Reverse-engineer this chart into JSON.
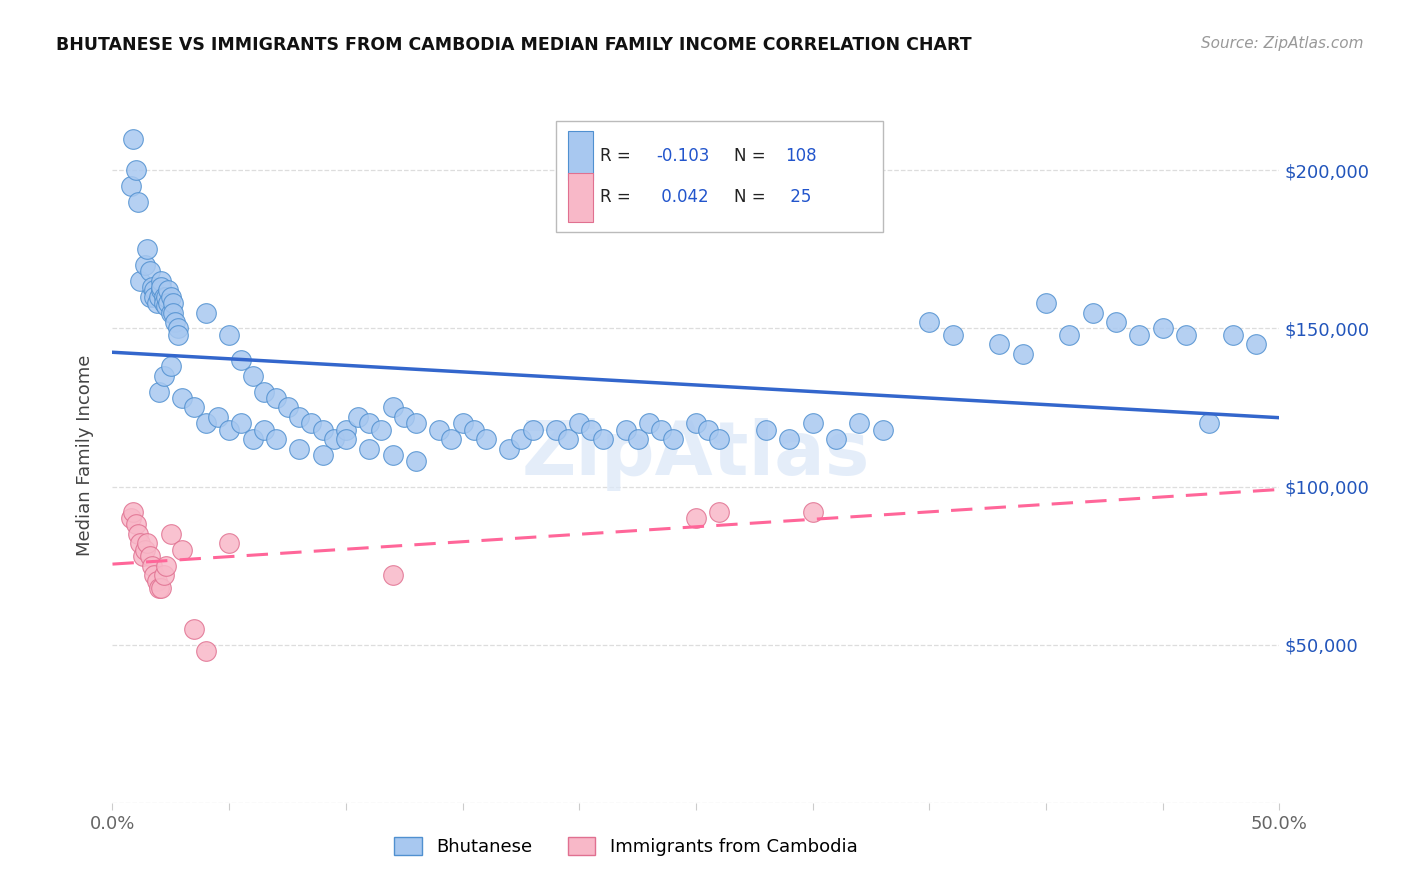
{
  "title": "BHUTANESE VS IMMIGRANTS FROM CAMBODIA MEDIAN FAMILY INCOME CORRELATION CHART",
  "source": "Source: ZipAtlas.com",
  "ylabel": "Median Family Income",
  "xlim": [
    0.0,
    0.5
  ],
  "ylim": [
    0,
    220000
  ],
  "yticks": [
    0,
    50000,
    100000,
    150000,
    200000
  ],
  "ytick_labels_right": [
    "",
    "$50,000",
    "$100,000",
    "$150,000",
    "$200,000"
  ],
  "xticks": [
    0.0,
    0.05,
    0.1,
    0.15,
    0.2,
    0.25,
    0.3,
    0.35,
    0.4,
    0.45,
    0.5
  ],
  "blue_fill": "#A8C8F0",
  "blue_edge": "#5090D0",
  "pink_fill": "#F8B8C8",
  "pink_edge": "#E07090",
  "blue_line": "#3366CC",
  "pink_line": "#FF6699",
  "legend_label_blue": "Bhutanese",
  "legend_label_pink": "Immigrants from Cambodia",
  "watermark": "ZipAtlas",
  "blue_x": [
    0.012,
    0.014,
    0.015,
    0.016,
    0.016,
    0.017,
    0.018,
    0.018,
    0.019,
    0.02,
    0.021,
    0.021,
    0.021,
    0.022,
    0.022,
    0.023,
    0.023,
    0.024,
    0.024,
    0.025,
    0.025,
    0.026,
    0.026,
    0.027,
    0.028,
    0.028,
    0.008,
    0.009,
    0.01,
    0.011,
    0.04,
    0.05,
    0.055,
    0.06,
    0.065,
    0.07,
    0.075,
    0.08,
    0.085,
    0.09,
    0.095,
    0.1,
    0.105,
    0.11,
    0.115,
    0.12,
    0.125,
    0.13,
    0.14,
    0.145,
    0.15,
    0.155,
    0.16,
    0.17,
    0.175,
    0.18,
    0.19,
    0.195,
    0.2,
    0.205,
    0.21,
    0.22,
    0.225,
    0.23,
    0.235,
    0.24,
    0.25,
    0.255,
    0.26,
    0.28,
    0.29,
    0.3,
    0.31,
    0.32,
    0.33,
    0.35,
    0.36,
    0.38,
    0.39,
    0.4,
    0.41,
    0.42,
    0.43,
    0.44,
    0.45,
    0.46,
    0.47,
    0.48,
    0.49,
    0.02,
    0.022,
    0.025,
    0.03,
    0.035,
    0.04,
    0.045,
    0.05,
    0.055,
    0.06,
    0.065,
    0.07,
    0.08,
    0.09,
    0.1,
    0.11,
    0.12,
    0.13
  ],
  "blue_y": [
    165000,
    170000,
    175000,
    168000,
    160000,
    163000,
    162000,
    160000,
    158000,
    160000,
    162000,
    165000,
    163000,
    160000,
    158000,
    157000,
    160000,
    162000,
    158000,
    155000,
    160000,
    158000,
    155000,
    152000,
    150000,
    148000,
    195000,
    210000,
    200000,
    190000,
    155000,
    148000,
    140000,
    135000,
    130000,
    128000,
    125000,
    122000,
    120000,
    118000,
    115000,
    118000,
    122000,
    120000,
    118000,
    125000,
    122000,
    120000,
    118000,
    115000,
    120000,
    118000,
    115000,
    112000,
    115000,
    118000,
    118000,
    115000,
    120000,
    118000,
    115000,
    118000,
    115000,
    120000,
    118000,
    115000,
    120000,
    118000,
    115000,
    118000,
    115000,
    120000,
    115000,
    120000,
    118000,
    152000,
    148000,
    145000,
    142000,
    158000,
    148000,
    155000,
    152000,
    148000,
    150000,
    148000,
    120000,
    148000,
    145000,
    130000,
    135000,
    138000,
    128000,
    125000,
    120000,
    122000,
    118000,
    120000,
    115000,
    118000,
    115000,
    112000,
    110000,
    115000,
    112000,
    110000,
    108000
  ],
  "pink_x": [
    0.008,
    0.009,
    0.01,
    0.011,
    0.012,
    0.013,
    0.014,
    0.015,
    0.016,
    0.017,
    0.018,
    0.019,
    0.02,
    0.021,
    0.022,
    0.023,
    0.025,
    0.03,
    0.035,
    0.04,
    0.05,
    0.12,
    0.25,
    0.26,
    0.3
  ],
  "pink_y": [
    90000,
    92000,
    88000,
    85000,
    82000,
    78000,
    80000,
    82000,
    78000,
    75000,
    72000,
    70000,
    68000,
    68000,
    72000,
    75000,
    85000,
    80000,
    55000,
    48000,
    82000,
    72000,
    90000,
    92000,
    92000
  ]
}
